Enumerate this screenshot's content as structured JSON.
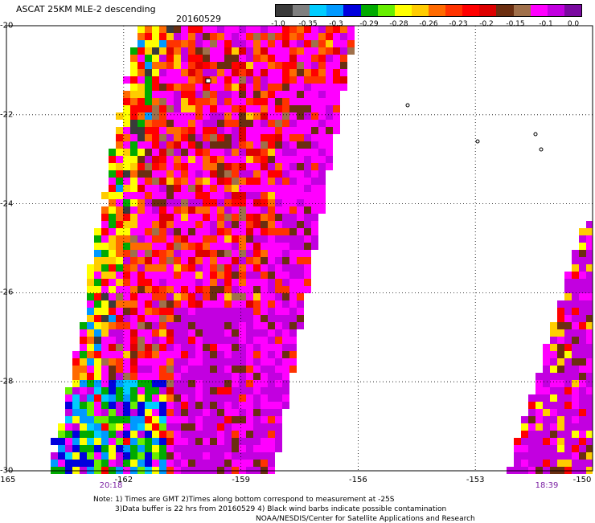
{
  "header": {
    "title": "ASCAT 25KM MLE-2 descending",
    "date": "20160529"
  },
  "colorbar": {
    "colors": [
      "#3a3a3a",
      "#7f7f7f",
      "#00ccff",
      "#0099ff",
      "#0000dd",
      "#00aa00",
      "#66ee00",
      "#ffff00",
      "#ffcc00",
      "#ff6a00",
      "#ff3300",
      "#ff0000",
      "#dd0000",
      "#6b2e10",
      "#a0704a",
      "#ff00ff",
      "#c200e0",
      "#7a0aa0"
    ],
    "tick_labels": [
      "-1.0",
      "-0.35",
      "-0.3",
      "-0.29",
      "-0.28",
      "-0.26",
      "-0.23",
      "-0.2",
      "-0.15",
      "-0.1",
      "0.0"
    ]
  },
  "map": {
    "lat_labels": [
      "-20",
      "-22",
      "-24",
      "-26",
      "-28",
      "-30"
    ],
    "lon_labels": [
      "-165",
      "-162",
      "-159",
      "-156",
      "-153",
      "-150"
    ],
    "time_labels": [
      "20:18",
      "18:39"
    ],
    "lat_range": [
      -30,
      -20
    ],
    "lon_range": [
      -165,
      -150
    ]
  },
  "notes": {
    "line1": "Note: 1) Times are GMT 2)Times along bottom correspond to measurement at -25S",
    "line2": "3)Data buffer is 22 hrs from 20160529 4) Black wind barbs indicate possible contamination",
    "line3": "NOAA/NESDIS/Center for Satellite Applications and Research"
  }
}
